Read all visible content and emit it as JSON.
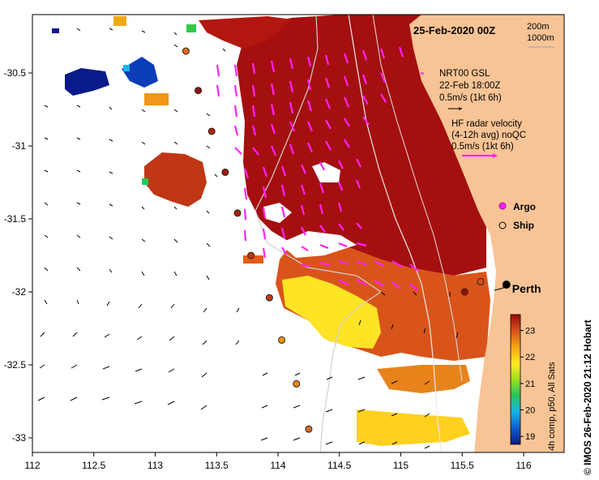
{
  "map": {
    "title": "25-Feb-2020 00Z",
    "x_axis": {
      "min": 112,
      "max": 116.33,
      "ticks": [
        "112",
        "112.5",
        "113",
        "113.5",
        "114",
        "114.5",
        "115",
        "115.5",
        "116"
      ]
    },
    "y_axis": {
      "min": -33.1,
      "max": -30.1,
      "ticks": [
        "-30.5",
        "-31",
        "-31.5",
        "-32",
        "-32.5",
        "-33"
      ]
    },
    "depth_legend": {
      "line1": "200m",
      "line2": "1000m"
    },
    "gsl_legend": {
      "line1": "NRT00 GSL",
      "line2": "22-Feb 18:00Z",
      "line3": "0.5m/s (1kt 6h)"
    },
    "hf_legend": {
      "line1": "HF radar velocity",
      "line2": "(4-12h avg) noQC",
      "line3": "0.5m/s (1kt 6h)"
    },
    "argo_label": "Argo",
    "ship_label": "Ship",
    "city_label": "Perth",
    "city": {
      "lon": 115.86,
      "lat": -31.95
    },
    "colorbar": {
      "ticks": [
        "19",
        "20",
        "21",
        "22",
        "23"
      ],
      "label": "4h comp, p50, All Sats",
      "min": 18.7,
      "max": 23.6
    },
    "credit": "© IMOS 26-Feb-2020 21:12 Hobart",
    "colors": {
      "land": "#f9c495",
      "hf_arrow": "#ff22ff",
      "warm": "#a50f0f",
      "mid": "#d9541a",
      "yellow": "#ffeb22",
      "cool": "#0b1a8a"
    },
    "ship_stations": [
      {
        "lon": 113.25,
        "lat": -30.35,
        "t": 22.8
      },
      {
        "lon": 113.35,
        "lat": -30.62,
        "t": 23.6
      },
      {
        "lon": 113.46,
        "lat": -30.9,
        "t": 23.4
      },
      {
        "lon": 113.57,
        "lat": -31.18,
        "t": 23.5
      },
      {
        "lon": 113.67,
        "lat": -31.46,
        "t": 23.4
      },
      {
        "lon": 113.78,
        "lat": -31.75,
        "t": 23.2
      },
      {
        "lon": 113.93,
        "lat": -32.04,
        "t": 23.2
      },
      {
        "lon": 114.03,
        "lat": -32.33,
        "t": 22.5
      },
      {
        "lon": 114.15,
        "lat": -32.63,
        "t": 22.6
      },
      {
        "lon": 114.25,
        "lat": -32.94,
        "t": 22.8
      },
      {
        "lon": 115.52,
        "lat": -32.0,
        "t": 23.6
      },
      {
        "lon": 115.65,
        "lat": -31.93,
        "t": 23.0
      }
    ]
  }
}
